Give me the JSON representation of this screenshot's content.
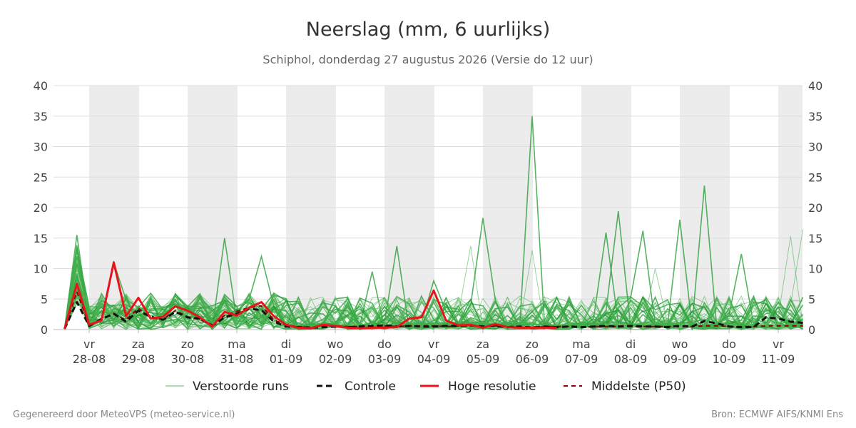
{
  "chart_data": {
    "type": "line",
    "title": "Neerslag (mm, 6 uurlijks)",
    "subtitle": "Schiphol, donderdag 27 augustus 2026 (Versie do 12 uur)",
    "ylim": [
      0,
      40
    ],
    "yticks": [
      0,
      5,
      10,
      15,
      20,
      25,
      30,
      35,
      40
    ],
    "x_start": "2026-08-27 12:00",
    "step_hours": 6,
    "num_points": 61,
    "day_ticks": [
      {
        "day": "vr",
        "date": "28-08"
      },
      {
        "day": "za",
        "date": "29-08"
      },
      {
        "day": "zo",
        "date": "30-08"
      },
      {
        "day": "ma",
        "date": "31-08"
      },
      {
        "day": "di",
        "date": "01-09"
      },
      {
        "day": "wo",
        "date": "02-09"
      },
      {
        "day": "do",
        "date": "03-09"
      },
      {
        "day": "vr",
        "date": "04-09"
      },
      {
        "day": "za",
        "date": "05-09"
      },
      {
        "day": "zo",
        "date": "06-09"
      },
      {
        "day": "ma",
        "date": "07-09"
      },
      {
        "day": "di",
        "date": "08-09"
      },
      {
        "day": "wo",
        "date": "09-09"
      },
      {
        "day": "do",
        "date": "10-09"
      },
      {
        "day": "vr",
        "date": "11-09"
      }
    ],
    "grid": true,
    "legend_position": "bottom",
    "series": [
      {
        "name": "Hoge resolutie",
        "color": "#e8141c",
        "values": [
          0.1,
          7.5,
          0.8,
          1.5,
          11,
          2.2,
          5.2,
          1.8,
          2.1,
          3.8,
          3.1,
          2.0,
          0.5,
          2.9,
          2.3,
          3.6,
          4.5,
          2.2,
          0.8,
          0.3,
          0.2,
          0.8,
          0.6,
          0.3,
          0.2,
          0.3,
          0.3,
          0.4,
          1.8,
          2.0,
          6.4,
          1.5,
          0.7,
          0.8,
          0.3,
          0.9,
          0.4,
          0.3,
          0.3,
          0.3,
          0.3
        ]
      },
      {
        "name": "Controle",
        "color": "#111111",
        "values": [
          0.1,
          4.5,
          0.6,
          1.7,
          2.6,
          1.3,
          3.1,
          2.1,
          1.6,
          2.9,
          2.0,
          1.8,
          0.6,
          2.0,
          2.6,
          3.4,
          3.2,
          1.3,
          0.5,
          0.4,
          0.3,
          0.4,
          0.5,
          0.4,
          0.5,
          0.6,
          0.7,
          0.5,
          0.6,
          0.5,
          0.5,
          0.6,
          0.6,
          0.7,
          0.5,
          0.6,
          0.4,
          0.5,
          0.3,
          0.5,
          0.4,
          0.5,
          0.4,
          0.5,
          0.6,
          0.5,
          0.6,
          0.5,
          0.5,
          0.4,
          0.6,
          0.5,
          1.4,
          1.0,
          0.5,
          0.4,
          0.4,
          2.0,
          1.8,
          1.3,
          1.1
        ]
      },
      {
        "name": "Middelste (P50)",
        "color": "#8b0000",
        "values": [
          0.1,
          6.2,
          0.6,
          1.8,
          2.5,
          1.6,
          3.5,
          1.9,
          1.7,
          3.1,
          2.1,
          1.6,
          0.8,
          2.3,
          3.0,
          3.6,
          3.9,
          1.6,
          0.7,
          0.5,
          0.4,
          0.6,
          0.6,
          0.5,
          0.5,
          0.6,
          0.6,
          0.5,
          0.6,
          0.6,
          0.6,
          0.5,
          0.6,
          0.6,
          0.5,
          0.6,
          0.5,
          0.5,
          0.4,
          0.5,
          0.5,
          0.5,
          0.4,
          0.5,
          0.5,
          0.5,
          0.5,
          0.5,
          0.5,
          0.5,
          0.5,
          0.5,
          0.6,
          0.6,
          0.5,
          0.5,
          0.5,
          0.6,
          0.6,
          0.6,
          0.6
        ]
      }
    ],
    "ensemble": {
      "name": "Verstoorde runs",
      "color": "#2ca02c",
      "members": 50
    }
  },
  "legend": {
    "ensemble": "Verstoorde runs",
    "control": "Controle",
    "hires": "Hoge resolutie",
    "median": "Middelste (P50)"
  },
  "footer": {
    "left": "Gegenereerd door MeteoVPS (meteo-service.nl)",
    "right": "Bron: ECMWF AIFS/KNMI Ens"
  }
}
